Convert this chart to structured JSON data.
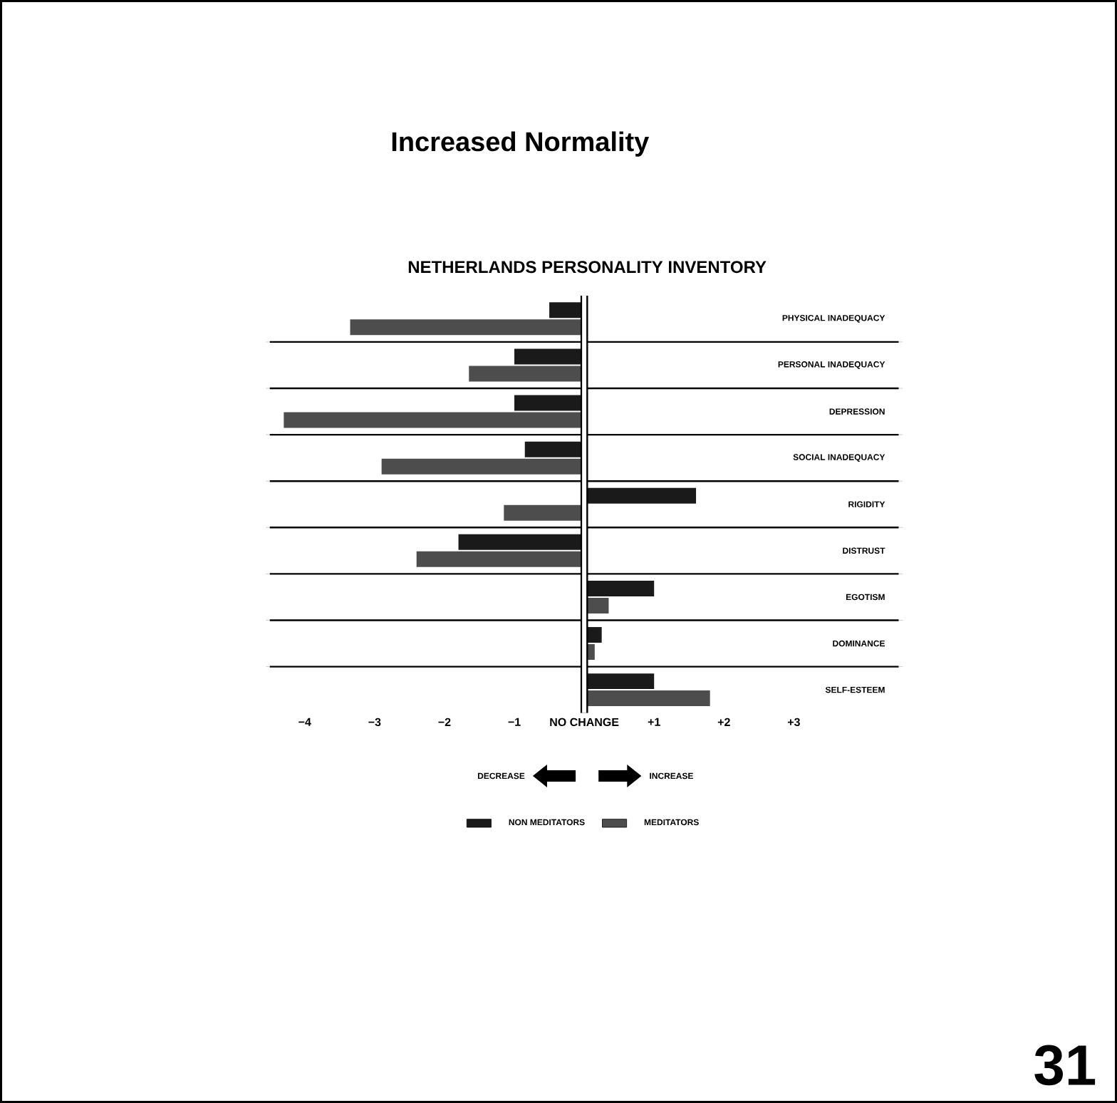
{
  "chart_data": {
    "type": "bar",
    "orientation": "horizontal",
    "title": "Increased Normality",
    "subtitle": "NETHERLANDS PERSONALITY INVENTORY",
    "categories": [
      "PHYSICAL INADEQUACY",
      "PERSONAL INADEQUACY",
      "DEPRESSION",
      "SOCIAL INADEQUACY",
      "RIGIDITY",
      "DISTRUST",
      "EGOTISM",
      "DOMINANCE",
      "SELF-ESTEEM"
    ],
    "series": [
      {
        "name": "NON MEDITATORS",
        "color": "#1a1a1a",
        "values": [
          -0.5,
          -1.0,
          -1.0,
          -0.85,
          1.6,
          -1.8,
          1.0,
          0.25,
          1.0
        ]
      },
      {
        "name": "MEDITATORS",
        "color": "#4d4d4d",
        "values": [
          -3.35,
          -1.65,
          -4.3,
          -2.9,
          -1.15,
          -2.4,
          0.35,
          0.15,
          1.8
        ]
      }
    ],
    "xlim": [
      -4.5,
      4.5
    ],
    "xticks": [
      {
        "value": -4,
        "label": "−4"
      },
      {
        "value": -3,
        "label": "−3"
      },
      {
        "value": -2,
        "label": "−2"
      },
      {
        "value": -1,
        "label": "−1"
      },
      {
        "value": 0,
        "label": "NO CHANGE"
      },
      {
        "value": 1,
        "label": "+1"
      },
      {
        "value": 2,
        "label": "+2"
      },
      {
        "value": 3,
        "label": "+3"
      }
    ],
    "ref_lines": [
      {
        "axis": "x",
        "value": 0
      }
    ],
    "grid": "y",
    "legend": "bottom",
    "annotations": [
      "DECREASE",
      "INCREASE",
      "31"
    ]
  }
}
